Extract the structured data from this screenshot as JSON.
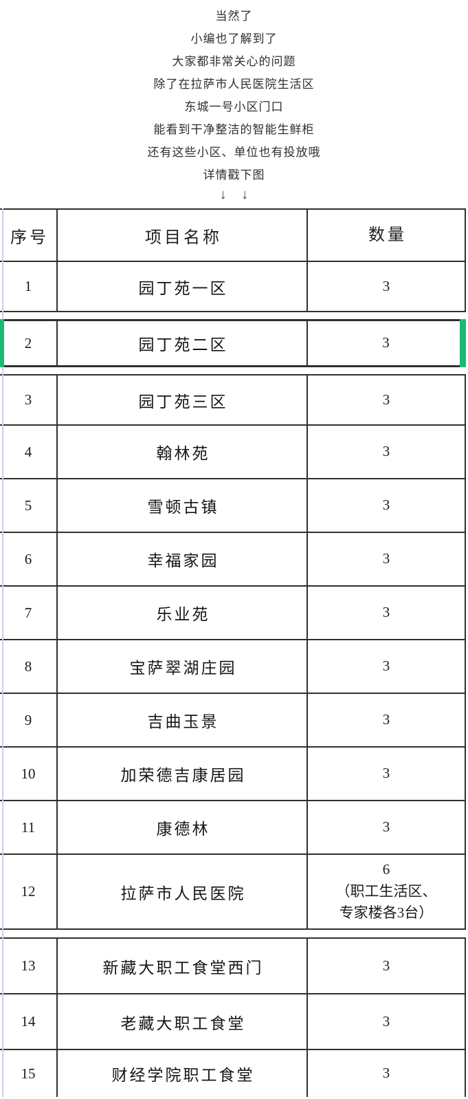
{
  "page": {
    "intro_lines": [
      "当然了",
      "小编也了解到了",
      "大家都非常关心的问题",
      "除了在拉萨市人民医院生活区",
      "东城一号小区门口",
      "能看到干净整洁的智能生鲜柜",
      "还有这些小区、单位也有投放哦",
      "详情戳下图"
    ],
    "arrows": "↓ ↓"
  },
  "table": {
    "headers": {
      "no": "序号",
      "name": "项目名称",
      "qty": "数量"
    },
    "rows": [
      {
        "no": "1",
        "name": "园丁苑一区",
        "qty": "3"
      },
      {
        "no": "2",
        "name": "园丁苑二区",
        "qty": "3",
        "selected": true
      },
      {
        "no": "3",
        "name": "园丁苑三区",
        "qty": "3"
      },
      {
        "no": "4",
        "name": "翰林苑",
        "qty": "3"
      },
      {
        "no": "5",
        "name": "雪顿古镇",
        "qty": "3"
      },
      {
        "no": "6",
        "name": "幸福家园",
        "qty": "3"
      },
      {
        "no": "7",
        "name": "乐业苑",
        "qty": "3"
      },
      {
        "no": "8",
        "name": "宝萨翠湖庄园",
        "qty": "3"
      },
      {
        "no": "9",
        "name": "吉曲玉景",
        "qty": "3"
      },
      {
        "no": "10",
        "name": "加荣德吉康居园",
        "qty": "3"
      },
      {
        "no": "11",
        "name": "康德林",
        "qty": "3"
      },
      {
        "no": "12",
        "name": "拉萨市人民医院",
        "qty": "6\n（职工生活区、\n专家楼各3台）"
      },
      {
        "no": "13",
        "name": "新藏大职工食堂西门",
        "qty": "3"
      },
      {
        "no": "14",
        "name": "老藏大职工食堂",
        "qty": "3"
      },
      {
        "no": "15",
        "name": "财经学院职工食堂",
        "qty": "3"
      }
    ]
  },
  "colors": {
    "selection_green": "#1db876",
    "table_border": "#2f2f2f",
    "guide_line_blue": "#c9d3e0",
    "text": "#222222"
  }
}
